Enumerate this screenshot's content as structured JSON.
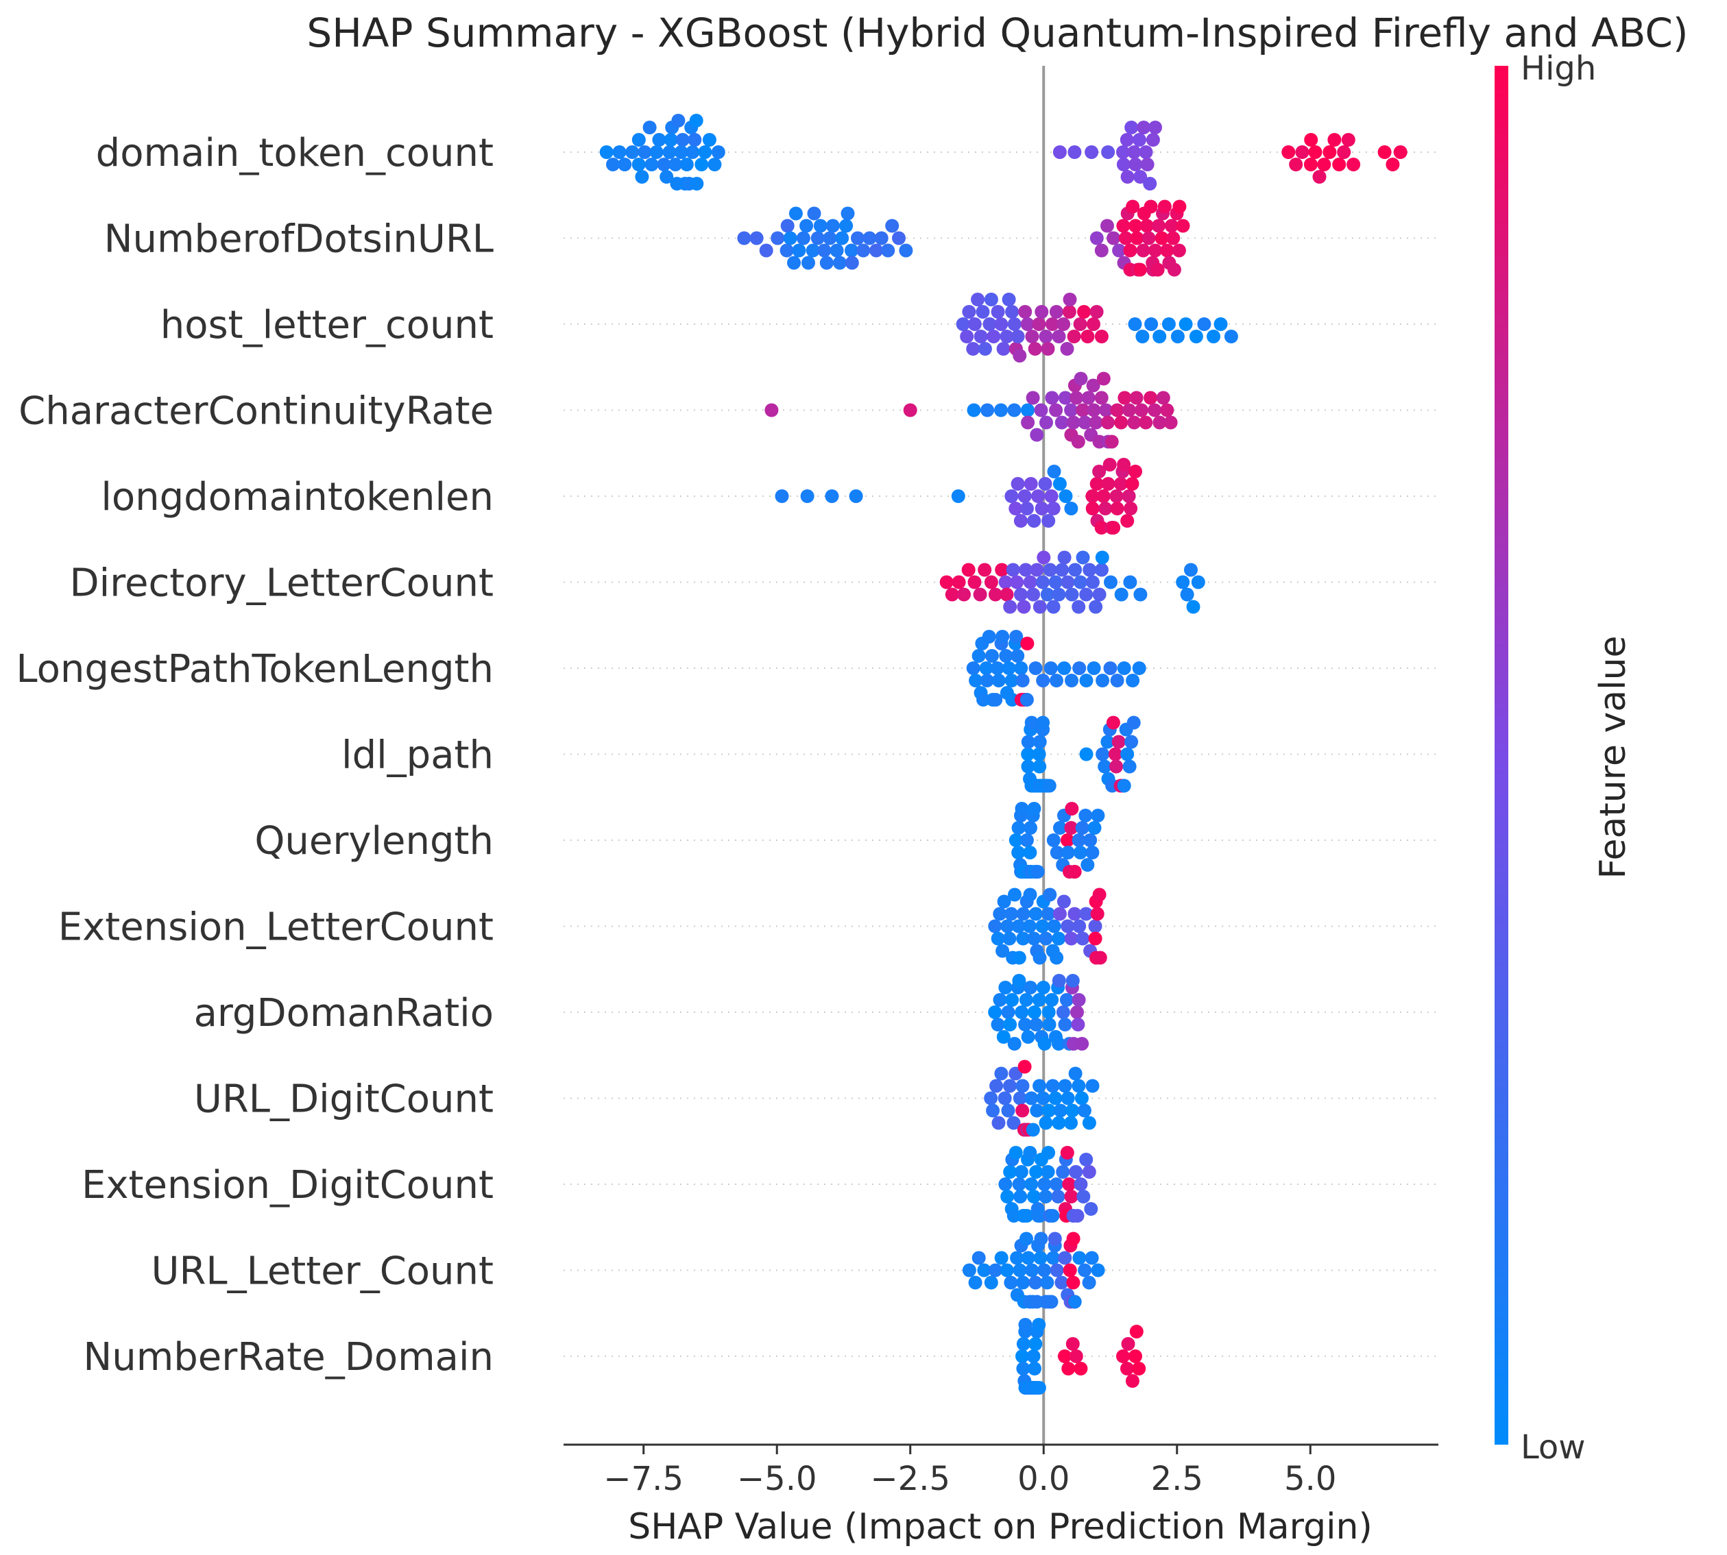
{
  "chart_data": {
    "type": "scatter",
    "subtype": "shap-beeswarm",
    "title": "SHAP Summary - XGBoost (Hybrid Quantum-Inspired Firefly and ABC)",
    "xlabel": "SHAP Value (Impact on Prediction Margin)",
    "xlim": [
      -9.0,
      7.4
    ],
    "xticks": [
      "−7.5",
      "−5.0",
      "−2.5",
      "0.0",
      "2.5",
      "5.0"
    ],
    "xtick_values": [
      -7.5,
      -5.0,
      -2.5,
      0.0,
      2.5,
      5.0
    ],
    "colorbar": {
      "label": "Feature value",
      "high": "High",
      "low": "Low"
    },
    "colors": {
      "low": "#008bfb",
      "high": "#ff0052",
      "axis": "#333333",
      "zero_line": "#999999",
      "grid": "#cccccc"
    },
    "features": [
      {
        "name": "domain_token_count",
        "clusters": [
          [
            -8.2,
            -7.6,
            0.05,
            6
          ],
          [
            -7.6,
            -7.0,
            0.08,
            10
          ],
          [
            -7.0,
            -6.5,
            0.1,
            14
          ],
          [
            -6.5,
            -6.1,
            0.05,
            6
          ],
          [
            0.3,
            1.5,
            0.45,
            5
          ],
          [
            1.5,
            2.1,
            0.5,
            14
          ],
          [
            4.6,
            5.0,
            0.95,
            4
          ],
          [
            5.0,
            5.8,
            0.98,
            10
          ],
          [
            6.4,
            6.7,
            1.0,
            3
          ]
        ]
      },
      {
        "name": "NumberofDotsinURL",
        "clusters": [
          [
            -5.6,
            -4.8,
            0.25,
            5
          ],
          [
            -4.8,
            -3.6,
            0.12,
            22
          ],
          [
            -3.6,
            -2.6,
            0.22,
            10
          ],
          [
            1.0,
            1.5,
            0.6,
            6
          ],
          [
            1.5,
            2.6,
            0.92,
            32
          ]
        ]
      },
      {
        "name": "host_letter_count",
        "clusters": [
          [
            -1.5,
            -0.5,
            0.4,
            20
          ],
          [
            -0.5,
            0.5,
            0.7,
            16
          ],
          [
            0.5,
            1.1,
            0.9,
            8
          ],
          [
            1.7,
            3.5,
            0.05,
            12
          ]
        ]
      },
      {
        "name": "CharacterContinuityRate",
        "clusters": [
          [
            -5.1,
            -5.1,
            0.75,
            1
          ],
          [
            -2.5,
            -2.5,
            0.8,
            1
          ],
          [
            -1.3,
            -0.3,
            0.1,
            5
          ],
          [
            -0.3,
            0.5,
            0.6,
            10
          ],
          [
            0.5,
            1.2,
            0.7,
            18
          ],
          [
            1.2,
            2.4,
            0.85,
            16
          ]
        ]
      },
      {
        "name": "longdomaintokenlen",
        "clusters": [
          [
            -4.9,
            -3.5,
            0.05,
            4
          ],
          [
            -1.6,
            -1.6,
            0.05,
            1
          ],
          [
            -0.6,
            0.2,
            0.45,
            14
          ],
          [
            0.2,
            0.5,
            0.05,
            4
          ],
          [
            0.9,
            1.7,
            0.9,
            22
          ]
        ]
      },
      {
        "name": "Directory_LetterCount",
        "clusters": [
          [
            -1.8,
            -0.7,
            0.9,
            12
          ],
          [
            -0.7,
            0.0,
            0.45,
            12
          ],
          [
            0.0,
            1.1,
            0.3,
            20
          ],
          [
            1.1,
            1.8,
            0.05,
            5
          ],
          [
            2.6,
            2.9,
            0.05,
            5
          ]
        ]
      },
      {
        "name": "LongestPathTokenLength",
        "clusters": [
          [
            -1.3,
            -0.4,
            0.1,
            26
          ],
          [
            -0.4,
            -0.3,
            0.98,
            6
          ],
          [
            -0.3,
            1.8,
            0.12,
            16
          ]
        ]
      },
      {
        "name": "ldl_path",
        "clusters": [
          [
            -0.3,
            0.0,
            0.05,
            24
          ],
          [
            0.0,
            0.1,
            0.05,
            4
          ],
          [
            0.8,
            0.8,
            0.05,
            1
          ],
          [
            1.1,
            1.3,
            0.1,
            6
          ],
          [
            1.3,
            1.5,
            0.9,
            6
          ],
          [
            1.5,
            1.7,
            0.1,
            6
          ]
        ]
      },
      {
        "name": "Querylength",
        "clusters": [
          [
            -0.5,
            -0.1,
            0.05,
            30
          ],
          [
            0.2,
            0.45,
            0.1,
            6
          ],
          [
            0.45,
            0.6,
            0.95,
            6
          ],
          [
            0.6,
            1.0,
            0.1,
            10
          ]
        ]
      },
      {
        "name": "Extension_LetterCount",
        "clusters": [
          [
            -0.9,
            0.3,
            0.08,
            30
          ],
          [
            0.3,
            0.95,
            0.4,
            10
          ],
          [
            0.95,
            1.05,
            0.95,
            6
          ]
        ]
      },
      {
        "name": "argDomanRatio",
        "clusters": [
          [
            -0.9,
            0.3,
            0.05,
            28
          ],
          [
            0.3,
            0.55,
            0.2,
            6
          ],
          [
            0.55,
            0.7,
            0.6,
            6
          ]
        ]
      },
      {
        "name": "URL_DigitCount",
        "clusters": [
          [
            -1.0,
            -0.4,
            0.25,
            12
          ],
          [
            -0.4,
            -0.3,
            0.95,
            6
          ],
          [
            -0.3,
            0.9,
            0.05,
            22
          ]
        ]
      },
      {
        "name": "Extension_DigitCount",
        "clusters": [
          [
            -0.7,
            0.1,
            0.05,
            26
          ],
          [
            0.1,
            0.4,
            0.15,
            6
          ],
          [
            0.4,
            0.55,
            0.95,
            6
          ],
          [
            0.55,
            0.9,
            0.35,
            8
          ]
        ]
      },
      {
        "name": "URL_Letter_Count",
        "clusters": [
          [
            -1.4,
            -0.5,
            0.08,
            10
          ],
          [
            -0.5,
            0.2,
            0.1,
            22
          ],
          [
            0.2,
            0.5,
            0.3,
            6
          ],
          [
            0.5,
            0.6,
            0.98,
            6
          ],
          [
            0.6,
            1.0,
            0.08,
            6
          ]
        ]
      },
      {
        "name": "NumberRate_Domain",
        "clusters": [
          [
            -0.4,
            -0.1,
            0.05,
            34
          ],
          [
            0.4,
            0.7,
            0.98,
            5
          ],
          [
            1.5,
            1.8,
            0.98,
            7
          ]
        ]
      }
    ]
  }
}
